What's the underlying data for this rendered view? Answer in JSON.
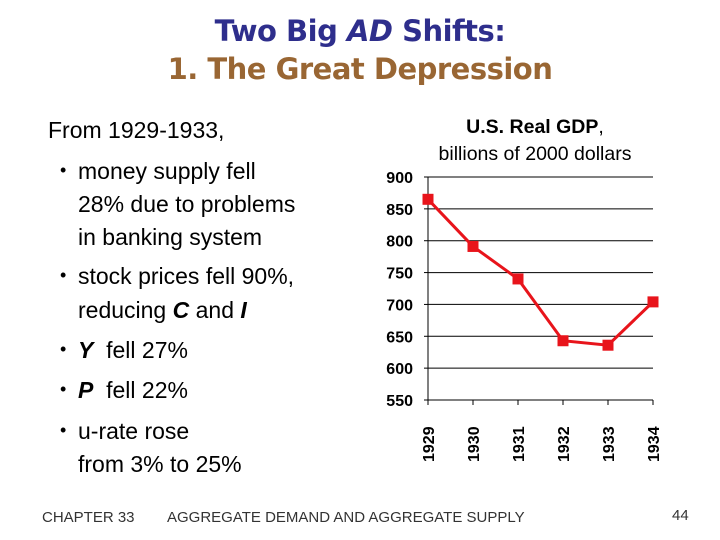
{
  "slide": {
    "title_part1": "Two Big ",
    "title_italic": "AD",
    "title_part2": " Shifts:",
    "subtitle": "1.  The Great Depression",
    "title_color": "#2e2e8c",
    "subtitle_color": "#996633",
    "intro": "From 1929-1933,",
    "bullets": [
      {
        "lines": [
          "money supply fell",
          "28% due to problems",
          "in banking system"
        ]
      },
      {
        "lines": [
          "stock prices fell 90%,"
        ],
        "line2_pre": "reducing ",
        "line2_b1": "C",
        "line2_mid": " and ",
        "line2_b2": "I"
      },
      {
        "bold": "Y",
        "rest": "  fell 27%"
      },
      {
        "bold": "P",
        "rest": "  fell 22%"
      },
      {
        "lines": [
          "u-rate rose",
          "from 3% to 25%"
        ]
      }
    ],
    "bullet_glyph": "•",
    "footer": {
      "chapter": "CHAPTER 33",
      "chapter_title": "AGGREGATE DEMAND AND AGGREGATE SUPPLY",
      "page": "44"
    }
  },
  "chart_data": {
    "type": "line",
    "title_bold": "U.S. Real GDP",
    "title_rest": ",",
    "subtitle": "billions of 2000 dollars",
    "categories": [
      "1929",
      "1930",
      "1931",
      "1932",
      "1933",
      "1934"
    ],
    "series": [
      {
        "values": [
          865,
          791,
          740,
          643,
          636,
          704
        ],
        "color": "#e8141b",
        "marker": "square"
      }
    ],
    "ylim": [
      550,
      900
    ],
    "yticks": [
      "550",
      "600",
      "650",
      "700",
      "750",
      "800",
      "850",
      "900"
    ],
    "grid": true,
    "xlabel": "",
    "ylabel": ""
  }
}
